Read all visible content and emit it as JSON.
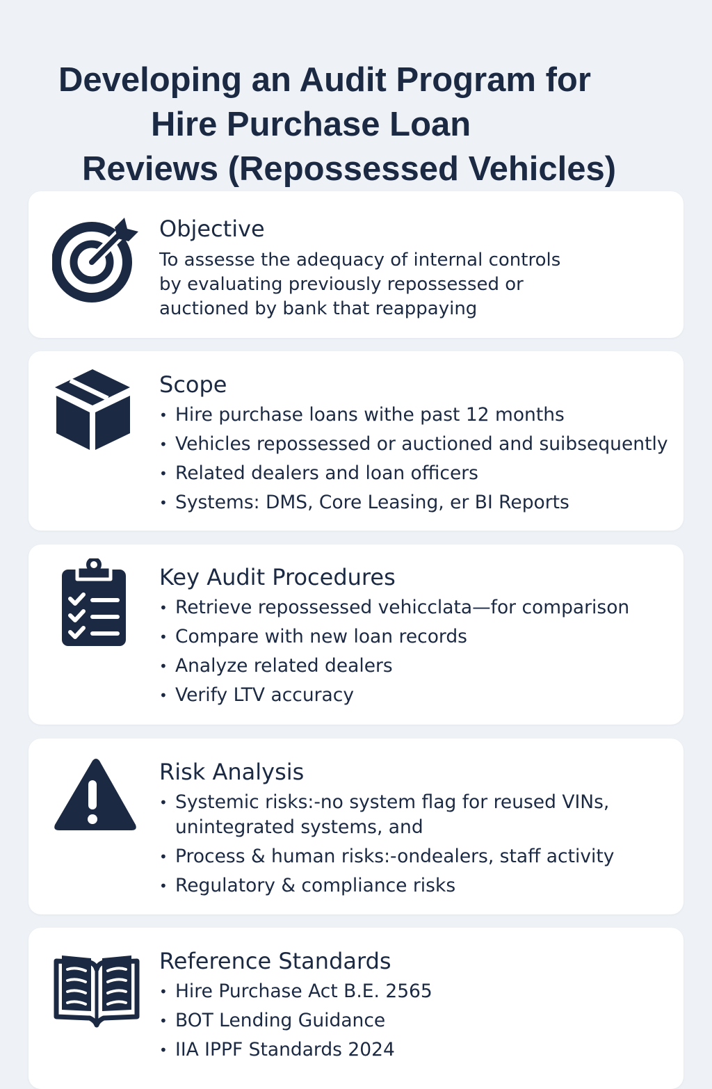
{
  "title": {
    "line1": "Developing an Audit Program for",
    "line2": "Hire Purchase Loan",
    "line3": "Reviews (Repossessed Vehicles)"
  },
  "colors": {
    "background": "#eef2f7",
    "card": "#ffffff",
    "text": "#1b2942",
    "icon": "#1b2942"
  },
  "sections": {
    "objective": {
      "icon": "target-icon",
      "heading": "Objective",
      "lines": [
        "To assesse the adequacy of internal controls",
        "by evaluating previously repossessed or",
        "auctioned by bank that reappaying"
      ]
    },
    "scope": {
      "icon": "box-icon",
      "heading": "Scope",
      "items": [
        "Hire purchase loans withe past 12 months",
        "Vehicles repossessed or auctioned and suibsequently",
        "Related dealers and loan officers",
        "Systems: DMS, Core Leasing, er  BI Reports"
      ]
    },
    "procedures": {
      "icon": "clipboard-checklist-icon",
      "heading": "Key Audit Procedures",
      "items": [
        "Retrieve repossessed vehicclata—for comparison",
        "Compare with new loan records",
        "Analyze related dealers",
        "Verify LTV accuracy"
      ]
    },
    "risk": {
      "icon": "warning-icon",
      "heading": "Risk Analysis",
      "items": [
        "Systemic risks:-no system flag for reused VINs, unintegrated systems, and",
        "Process & human risks:-ondealers, staff activity",
        "Regulatory & compliance risks"
      ]
    },
    "references": {
      "icon": "open-book-icon",
      "heading": "Reference Standards",
      "items": [
        "Hire Purchase Act B.E. 2565",
        "BOT Lending Guidance",
        "IIA IPPF Standards 2024"
      ]
    }
  }
}
